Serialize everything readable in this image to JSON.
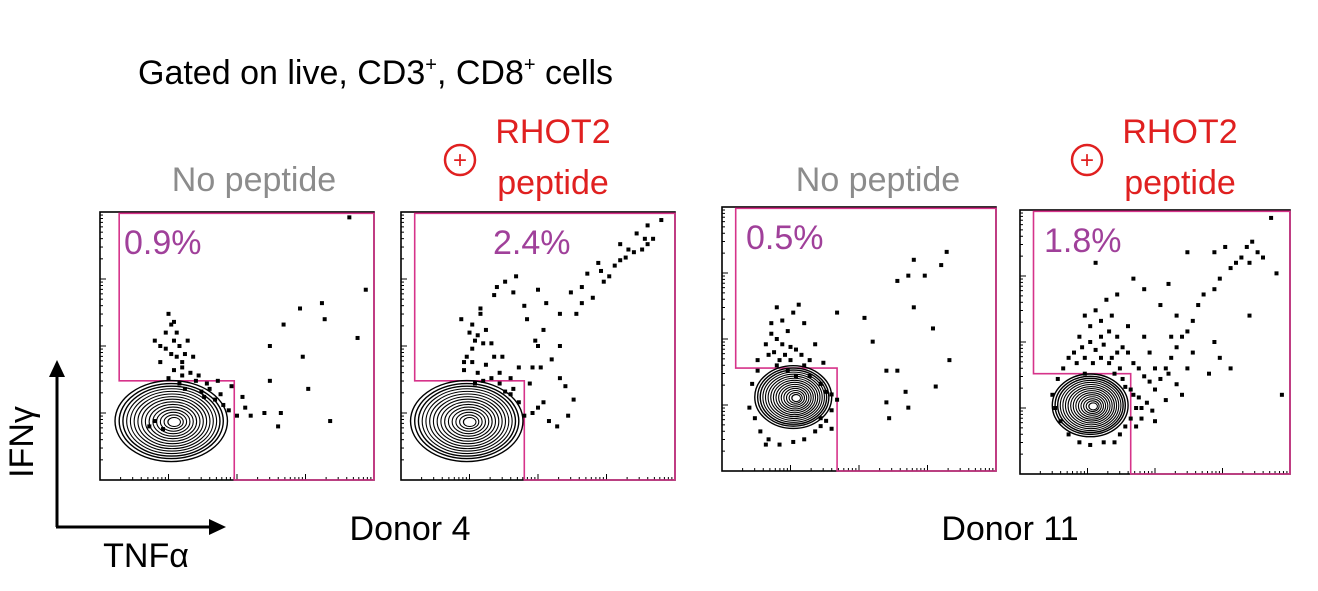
{
  "figure": {
    "gating_prefix": "Gated on live, CD3",
    "gating_sup1": "+",
    "gating_mid": ", CD8",
    "gating_sup2": "+",
    "gating_suffix": " cells",
    "y_axis_label": "IFNγ",
    "x_axis_label": "TNFα",
    "donors": [
      "Donor 4",
      "Donor 11"
    ],
    "condition_labels": {
      "control": "No peptide",
      "peptide_line1": "RHOT2",
      "peptide_line2": "peptide",
      "peptide_symbol": "+"
    },
    "colors": {
      "control_label": "#8c8c8c",
      "peptide_label": "#e02020",
      "gate_line": "#d6338a",
      "percent_text": "#a0409a",
      "events": "#000000"
    }
  },
  "chart_data": [
    {
      "type": "scatter",
      "subtype": "flow-cytometry-contour",
      "donor": "Donor 4",
      "condition": "No peptide",
      "gate_percent": "0.9%",
      "xlabel": "TNFα",
      "ylabel": "IFNγ",
      "xlim": [
        0,
        1
      ],
      "ylim": [
        0,
        1
      ],
      "gate_polygon": [
        [
          0.07,
          0.995
        ],
        [
          1.0,
          0.995
        ],
        [
          1.0,
          0.0
        ],
        [
          0.49,
          0.0
        ],
        [
          0.49,
          0.37
        ],
        [
          0.07,
          0.37
        ]
      ],
      "contour_center": [
        0.26,
        0.22
      ],
      "contour_radii": [
        0.38,
        0.28
      ],
      "points": [
        [
          0.26,
          0.58
        ],
        [
          0.28,
          0.55
        ],
        [
          0.27,
          0.52
        ],
        [
          0.29,
          0.5
        ],
        [
          0.24,
          0.49
        ],
        [
          0.31,
          0.47
        ],
        [
          0.22,
          0.44
        ],
        [
          0.3,
          0.42
        ],
        [
          0.27,
          0.41
        ],
        [
          0.33,
          0.4
        ],
        [
          0.25,
          0.38
        ],
        [
          0.35,
          0.37
        ],
        [
          0.29,
          0.36
        ],
        [
          0.31,
          0.34
        ],
        [
          0.37,
          0.33
        ],
        [
          0.4,
          0.34
        ],
        [
          0.42,
          0.3
        ],
        [
          0.45,
          0.28
        ],
        [
          0.47,
          0.26
        ],
        [
          0.5,
          0.24
        ],
        [
          0.53,
          0.27
        ],
        [
          0.55,
          0.24
        ],
        [
          0.6,
          0.25
        ],
        [
          0.66,
          0.25
        ],
        [
          0.84,
          0.22
        ],
        [
          0.62,
          0.37
        ],
        [
          0.62,
          0.5
        ],
        [
          0.67,
          0.58
        ],
        [
          0.73,
          0.64
        ],
        [
          0.82,
          0.6
        ],
        [
          0.94,
          0.53
        ],
        [
          0.97,
          0.71
        ],
        [
          0.81,
          0.66
        ],
        [
          0.3,
          0.44
        ],
        [
          0.34,
          0.46
        ],
        [
          0.28,
          0.46
        ],
        [
          0.32,
          0.52
        ],
        [
          0.24,
          0.55
        ],
        [
          0.36,
          0.39
        ],
        [
          0.38,
          0.31
        ],
        [
          0.43,
          0.37
        ],
        [
          0.39,
          0.36
        ],
        [
          0.22,
          0.5
        ],
        [
          0.26,
          0.47
        ],
        [
          0.3,
          0.39
        ],
        [
          0.27,
          0.59
        ],
        [
          0.2,
          0.52
        ],
        [
          0.48,
          0.35
        ],
        [
          0.44,
          0.32
        ],
        [
          0.52,
          0.31
        ],
        [
          0.25,
          0.62
        ],
        [
          0.74,
          0.46
        ],
        [
          0.76,
          0.34
        ],
        [
          0.65,
          0.2
        ],
        [
          0.2,
          0.22
        ],
        [
          0.18,
          0.2
        ],
        [
          0.23,
          0.19
        ],
        [
          0.91,
          0.98
        ]
      ]
    },
    {
      "type": "scatter",
      "subtype": "flow-cytometry-contour",
      "donor": "Donor 4",
      "condition": "RHOT2 peptide",
      "gate_percent": "2.4%",
      "xlabel": "TNFα",
      "ylabel": "IFNγ",
      "xlim": [
        0,
        1
      ],
      "ylim": [
        0,
        1
      ],
      "gate_polygon": [
        [
          0.05,
          0.995
        ],
        [
          1.0,
          0.995
        ],
        [
          1.0,
          0.0
        ],
        [
          0.45,
          0.0
        ],
        [
          0.45,
          0.37
        ],
        [
          0.05,
          0.37
        ]
      ],
      "contour_center": [
        0.24,
        0.22
      ],
      "contour_radii": [
        0.38,
        0.28
      ],
      "points": [
        [
          0.23,
          0.44
        ],
        [
          0.24,
          0.46
        ],
        [
          0.23,
          0.41
        ],
        [
          0.26,
          0.49
        ],
        [
          0.27,
          0.52
        ],
        [
          0.25,
          0.55
        ],
        [
          0.28,
          0.54
        ],
        [
          0.26,
          0.58
        ],
        [
          0.22,
          0.6
        ],
        [
          0.29,
          0.62
        ],
        [
          0.29,
          0.64
        ],
        [
          0.31,
          0.56
        ],
        [
          0.33,
          0.51
        ],
        [
          0.34,
          0.46
        ],
        [
          0.36,
          0.4
        ],
        [
          0.38,
          0.33
        ],
        [
          0.4,
          0.32
        ],
        [
          0.43,
          0.29
        ],
        [
          0.45,
          0.24
        ],
        [
          0.48,
          0.25
        ],
        [
          0.5,
          0.27
        ],
        [
          0.52,
          0.29
        ],
        [
          0.54,
          0.22
        ],
        [
          0.57,
          0.2
        ],
        [
          0.61,
          0.24
        ],
        [
          0.63,
          0.3
        ],
        [
          0.6,
          0.35
        ],
        [
          0.58,
          0.38
        ],
        [
          0.51,
          0.42
        ],
        [
          0.5,
          0.5
        ],
        [
          0.49,
          0.52
        ],
        [
          0.52,
          0.56
        ],
        [
          0.46,
          0.6
        ],
        [
          0.45,
          0.65
        ],
        [
          0.41,
          0.7
        ],
        [
          0.38,
          0.74
        ],
        [
          0.35,
          0.72
        ],
        [
          0.34,
          0.69
        ],
        [
          0.42,
          0.76
        ],
        [
          0.5,
          0.71
        ],
        [
          0.53,
          0.66
        ],
        [
          0.58,
          0.62
        ],
        [
          0.64,
          0.62
        ],
        [
          0.66,
          0.66
        ],
        [
          0.7,
          0.68
        ],
        [
          0.74,
          0.74
        ],
        [
          0.76,
          0.76
        ],
        [
          0.73,
          0.78
        ],
        [
          0.78,
          0.8
        ],
        [
          0.8,
          0.82
        ],
        [
          0.82,
          0.83
        ],
        [
          0.85,
          0.85
        ],
        [
          0.88,
          0.86
        ],
        [
          0.9,
          0.88
        ],
        [
          0.92,
          0.9
        ],
        [
          0.89,
          0.9
        ],
        [
          0.86,
          0.92
        ],
        [
          0.9,
          0.95
        ],
        [
          0.95,
          0.97
        ],
        [
          0.83,
          0.86
        ],
        [
          0.8,
          0.88
        ],
        [
          0.72,
          0.81
        ],
        [
          0.68,
          0.77
        ],
        [
          0.66,
          0.72
        ],
        [
          0.62,
          0.7
        ],
        [
          0.3,
          0.37
        ],
        [
          0.33,
          0.38
        ],
        [
          0.36,
          0.36
        ],
        [
          0.41,
          0.34
        ],
        [
          0.37,
          0.46
        ],
        [
          0.3,
          0.51
        ],
        [
          0.48,
          0.42
        ],
        [
          0.26,
          0.44
        ],
        [
          0.28,
          0.4
        ],
        [
          0.31,
          0.43
        ],
        [
          0.27,
          0.36
        ],
        [
          0.4,
          0.38
        ],
        [
          0.43,
          0.42
        ],
        [
          0.58,
          0.5
        ],
        [
          0.55,
          0.45
        ],
        [
          0.47,
          0.36
        ]
      ]
    },
    {
      "type": "scatter",
      "subtype": "flow-cytometry-contour",
      "donor": "Donor 11",
      "condition": "No peptide",
      "gate_percent": "0.5%",
      "xlabel": "TNFα",
      "ylabel": "IFNγ",
      "xlim": [
        0,
        1
      ],
      "ylim": [
        0,
        1
      ],
      "gate_polygon": [
        [
          0.05,
          0.995
        ],
        [
          1.0,
          0.995
        ],
        [
          1.0,
          0.0
        ],
        [
          0.42,
          0.0
        ],
        [
          0.42,
          0.39
        ],
        [
          0.05,
          0.39
        ]
      ],
      "contour_center": [
        0.26,
        0.28
      ],
      "contour_radii": [
        0.26,
        0.22
      ],
      "points": [
        [
          0.18,
          0.52
        ],
        [
          0.2,
          0.5
        ],
        [
          0.22,
          0.48
        ],
        [
          0.25,
          0.47
        ],
        [
          0.19,
          0.45
        ],
        [
          0.23,
          0.44
        ],
        [
          0.27,
          0.46
        ],
        [
          0.29,
          0.44
        ],
        [
          0.21,
          0.42
        ],
        [
          0.25,
          0.42
        ],
        [
          0.3,
          0.4
        ],
        [
          0.32,
          0.42
        ],
        [
          0.17,
          0.44
        ],
        [
          0.2,
          0.4
        ],
        [
          0.24,
          0.53
        ],
        [
          0.16,
          0.48
        ],
        [
          0.22,
          0.57
        ],
        [
          0.26,
          0.6
        ],
        [
          0.2,
          0.62
        ],
        [
          0.3,
          0.56
        ],
        [
          0.34,
          0.48
        ],
        [
          0.32,
          0.36
        ],
        [
          0.36,
          0.33
        ],
        [
          0.38,
          0.3
        ],
        [
          0.4,
          0.29
        ],
        [
          0.42,
          0.27
        ],
        [
          0.4,
          0.23
        ],
        [
          0.38,
          0.19
        ],
        [
          0.36,
          0.17
        ],
        [
          0.4,
          0.16
        ],
        [
          0.1,
          0.24
        ],
        [
          0.12,
          0.2
        ],
        [
          0.14,
          0.15
        ],
        [
          0.17,
          0.12
        ],
        [
          0.16,
          0.1
        ],
        [
          0.21,
          0.1
        ],
        [
          0.26,
          0.11
        ],
        [
          0.3,
          0.12
        ],
        [
          0.34,
          0.15
        ],
        [
          0.36,
          0.2
        ],
        [
          0.11,
          0.33
        ],
        [
          0.13,
          0.38
        ],
        [
          0.37,
          0.41
        ],
        [
          0.28,
          0.63
        ],
        [
          0.42,
          0.6
        ],
        [
          0.52,
          0.58
        ],
        [
          0.55,
          0.49
        ],
        [
          0.6,
          0.38
        ],
        [
          0.64,
          0.38
        ],
        [
          0.6,
          0.26
        ],
        [
          0.61,
          0.2
        ],
        [
          0.67,
          0.3
        ],
        [
          0.64,
          0.72
        ],
        [
          0.68,
          0.74
        ],
        [
          0.7,
          0.8
        ],
        [
          0.82,
          0.83
        ],
        [
          0.8,
          0.78
        ],
        [
          0.74,
          0.74
        ],
        [
          0.7,
          0.62
        ],
        [
          0.77,
          0.54
        ],
        [
          0.83,
          0.42
        ],
        [
          0.78,
          0.32
        ],
        [
          0.68,
          0.24
        ],
        [
          0.18,
          0.56
        ],
        [
          0.24,
          0.38
        ],
        [
          0.27,
          0.36
        ],
        [
          0.13,
          0.42
        ]
      ]
    },
    {
      "type": "scatter",
      "subtype": "flow-cytometry-contour",
      "donor": "Donor 11",
      "condition": "RHOT2 peptide",
      "gate_percent": "1.8%",
      "xlabel": "TNFα",
      "ylabel": "IFNγ",
      "xlim": [
        0,
        1
      ],
      "ylim": [
        0,
        1
      ],
      "gate_polygon": [
        [
          0.05,
          0.995
        ],
        [
          1.0,
          0.995
        ],
        [
          1.0,
          0.0
        ],
        [
          0.41,
          0.0
        ],
        [
          0.41,
          0.38
        ],
        [
          0.05,
          0.38
        ]
      ],
      "contour_center": [
        0.26,
        0.26
      ],
      "contour_radii": [
        0.26,
        0.22
      ],
      "points": [
        [
          0.2,
          0.46
        ],
        [
          0.23,
          0.48
        ],
        [
          0.26,
          0.5
        ],
        [
          0.28,
          0.47
        ],
        [
          0.31,
          0.49
        ],
        [
          0.24,
          0.44
        ],
        [
          0.21,
          0.42
        ],
        [
          0.27,
          0.42
        ],
        [
          0.3,
          0.44
        ],
        [
          0.33,
          0.42
        ],
        [
          0.18,
          0.44
        ],
        [
          0.16,
          0.4
        ],
        [
          0.35,
          0.38
        ],
        [
          0.37,
          0.4
        ],
        [
          0.38,
          0.36
        ],
        [
          0.39,
          0.33
        ],
        [
          0.41,
          0.32
        ],
        [
          0.42,
          0.3
        ],
        [
          0.44,
          0.29
        ],
        [
          0.43,
          0.25
        ],
        [
          0.45,
          0.25
        ],
        [
          0.47,
          0.27
        ],
        [
          0.49,
          0.24
        ],
        [
          0.45,
          0.21
        ],
        [
          0.43,
          0.18
        ],
        [
          0.41,
          0.21
        ],
        [
          0.39,
          0.18
        ],
        [
          0.37,
          0.15
        ],
        [
          0.35,
          0.12
        ],
        [
          0.31,
          0.12
        ],
        [
          0.26,
          0.11
        ],
        [
          0.22,
          0.12
        ],
        [
          0.18,
          0.15
        ],
        [
          0.15,
          0.2
        ],
        [
          0.13,
          0.25
        ],
        [
          0.12,
          0.3
        ],
        [
          0.14,
          0.36
        ],
        [
          0.22,
          0.52
        ],
        [
          0.26,
          0.56
        ],
        [
          0.24,
          0.6
        ],
        [
          0.28,
          0.62
        ],
        [
          0.3,
          0.58
        ],
        [
          0.33,
          0.54
        ],
        [
          0.36,
          0.52
        ],
        [
          0.38,
          0.48
        ],
        [
          0.4,
          0.46
        ],
        [
          0.42,
          0.42
        ],
        [
          0.44,
          0.4
        ],
        [
          0.46,
          0.37
        ],
        [
          0.48,
          0.35
        ],
        [
          0.5,
          0.32
        ],
        [
          0.52,
          0.36
        ],
        [
          0.54,
          0.4
        ],
        [
          0.56,
          0.44
        ],
        [
          0.58,
          0.48
        ],
        [
          0.6,
          0.52
        ],
        [
          0.62,
          0.54
        ],
        [
          0.58,
          0.6
        ],
        [
          0.64,
          0.58
        ],
        [
          0.66,
          0.64
        ],
        [
          0.68,
          0.68
        ],
        [
          0.72,
          0.7
        ],
        [
          0.74,
          0.74
        ],
        [
          0.78,
          0.78
        ],
        [
          0.8,
          0.8
        ],
        [
          0.82,
          0.82
        ],
        [
          0.84,
          0.86
        ],
        [
          0.86,
          0.88
        ],
        [
          0.88,
          0.84
        ],
        [
          0.9,
          0.82
        ],
        [
          0.85,
          0.8
        ],
        [
          0.76,
          0.86
        ],
        [
          0.72,
          0.84
        ],
        [
          0.62,
          0.84
        ],
        [
          0.55,
          0.72
        ],
        [
          0.52,
          0.64
        ],
        [
          0.46,
          0.7
        ],
        [
          0.42,
          0.74
        ],
        [
          0.36,
          0.68
        ],
        [
          0.32,
          0.66
        ],
        [
          0.28,
          0.8
        ],
        [
          0.5,
          0.2
        ],
        [
          0.54,
          0.28
        ],
        [
          0.6,
          0.3
        ],
        [
          0.7,
          0.38
        ],
        [
          0.74,
          0.44
        ],
        [
          0.78,
          0.4
        ],
        [
          0.95,
          0.76
        ],
        [
          0.97,
          0.3
        ],
        [
          0.85,
          0.6
        ],
        [
          0.72,
          0.5
        ],
        [
          0.64,
          0.46
        ],
        [
          0.56,
          0.52
        ],
        [
          0.48,
          0.46
        ],
        [
          0.46,
          0.52
        ],
        [
          0.4,
          0.56
        ],
        [
          0.34,
          0.6
        ],
        [
          0.3,
          0.52
        ],
        [
          0.24,
          0.38
        ],
        [
          0.34,
          0.44
        ],
        [
          0.36,
          0.46
        ],
        [
          0.55,
          0.38
        ],
        [
          0.58,
          0.34
        ],
        [
          0.62,
          0.4
        ],
        [
          0.5,
          0.4
        ],
        [
          0.93,
          0.97
        ]
      ]
    }
  ]
}
